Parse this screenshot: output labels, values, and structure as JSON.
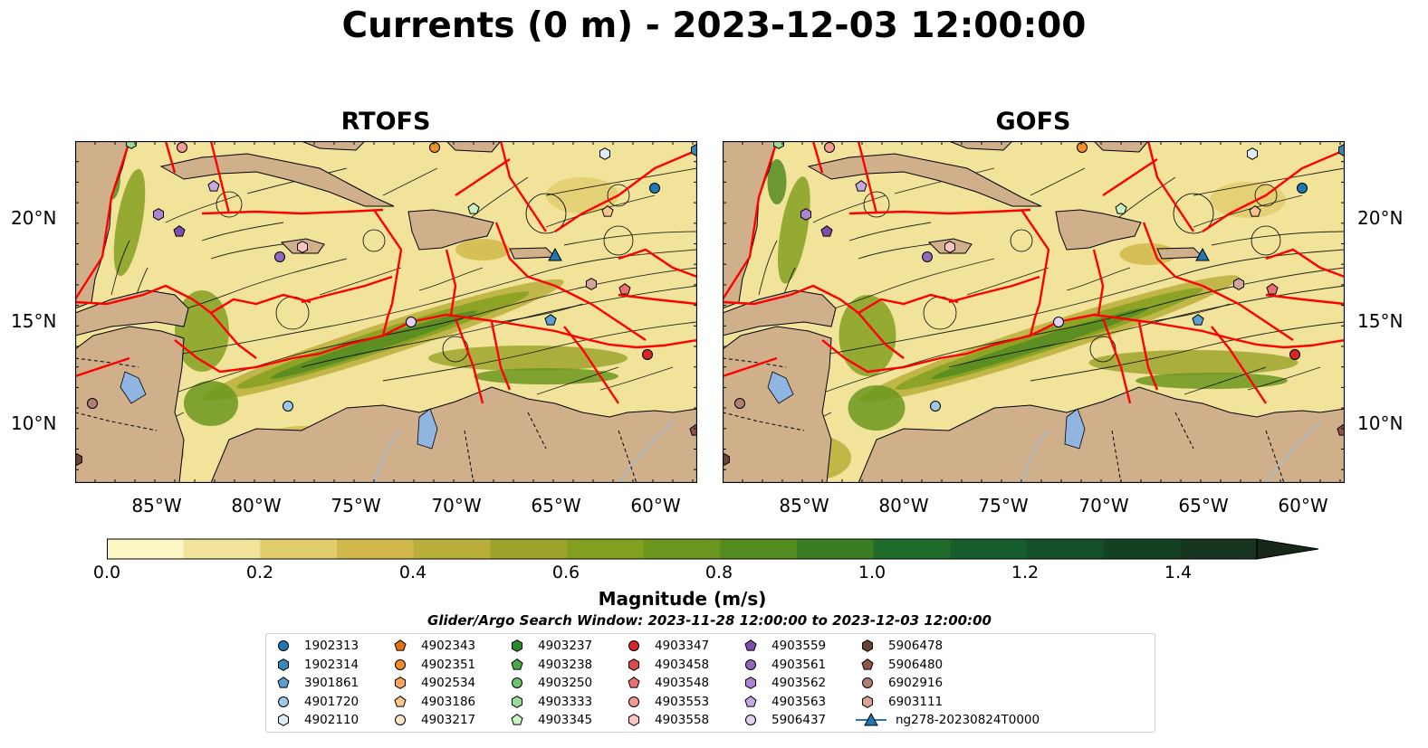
{
  "title": "Currents (0 m) - 2023-12-03 12:00:00",
  "panels": [
    {
      "name": "RTOFS"
    },
    {
      "name": "GOFS"
    }
  ],
  "lat_ticks": [
    "20°N",
    "15°N",
    "10°N"
  ],
  "lon_ticks": [
    "85°W",
    "80°W",
    "75°W",
    "70°W",
    "65°W",
    "60°W"
  ],
  "colorbar": {
    "label": "Magnitude (m/s)",
    "ticks": [
      "0.0",
      "0.2",
      "0.4",
      "0.6",
      "0.8",
      "1.0",
      "1.2",
      "1.4"
    ],
    "colors": [
      "#fdf7c6",
      "#f1e49a",
      "#e2cd6e",
      "#d2b84c",
      "#b9ae3a",
      "#9ea42b",
      "#84a020",
      "#6b971f",
      "#538b21",
      "#3a7d24",
      "#1f6b2b",
      "#165e2d",
      "#145029",
      "#154123",
      "#16341f",
      "#17281a"
    ]
  },
  "search_window": "Glider/Argo Search Window: 2023-11-28 12:00:00 to 2023-12-03 12:00:00",
  "legend": [
    {
      "label": "1902313",
      "shape": "circle",
      "color": "#1f77b4"
    },
    {
      "label": "1902314",
      "shape": "hexagon",
      "color": "#3a86b8"
    },
    {
      "label": "3901861",
      "shape": "pentagon",
      "color": "#5a9fd4"
    },
    {
      "label": "4901720",
      "shape": "circle",
      "color": "#9cc8e8"
    },
    {
      "label": "4902110",
      "shape": "hexagon",
      "color": "#dcedf8"
    },
    {
      "label": "4902343",
      "shape": "pentagon",
      "color": "#e6700f"
    },
    {
      "label": "4902351",
      "shape": "circle",
      "color": "#f28e2b"
    },
    {
      "label": "4902534",
      "shape": "hexagon",
      "color": "#f7a55a"
    },
    {
      "label": "4903186",
      "shape": "pentagon",
      "color": "#fbc58e"
    },
    {
      "label": "4903217",
      "shape": "circle",
      "color": "#fde3c6"
    },
    {
      "label": "4903237",
      "shape": "hexagon",
      "color": "#2c8a2c"
    },
    {
      "label": "4903238",
      "shape": "pentagon",
      "color": "#4aa84a"
    },
    {
      "label": "4903250",
      "shape": "circle",
      "color": "#6cc36c"
    },
    {
      "label": "4903333",
      "shape": "hexagon",
      "color": "#98dc98"
    },
    {
      "label": "4903345",
      "shape": "pentagon",
      "color": "#c9f3c3"
    },
    {
      "label": "4903347",
      "shape": "circle",
      "color": "#d62728"
    },
    {
      "label": "4903458",
      "shape": "hexagon",
      "color": "#e04a4a"
    },
    {
      "label": "4903548",
      "shape": "pentagon",
      "color": "#ec7070"
    },
    {
      "label": "4903553",
      "shape": "circle",
      "color": "#f29a96"
    },
    {
      "label": "4903558",
      "shape": "hexagon",
      "color": "#fac4c0"
    },
    {
      "label": "4903559",
      "shape": "pentagon",
      "color": "#7e4ea8"
    },
    {
      "label": "4903561",
      "shape": "circle",
      "color": "#9467bd"
    },
    {
      "label": "4903562",
      "shape": "hexagon",
      "color": "#ab86d0"
    },
    {
      "label": "4903563",
      "shape": "pentagon",
      "color": "#c5a9e2"
    },
    {
      "label": "5906437",
      "shape": "circle",
      "color": "#e3d0f3"
    },
    {
      "label": "5906478",
      "shape": "hexagon",
      "color": "#6b4332"
    },
    {
      "label": "5906480",
      "shape": "pentagon",
      "color": "#8c564b"
    },
    {
      "label": "6902916",
      "shape": "circle",
      "color": "#b07f72"
    },
    {
      "label": "6903111",
      "shape": "hexagon",
      "color": "#d4a596"
    },
    {
      "label": "ng278-20230824T0000",
      "shape": "triangle",
      "color": "#1f77b4"
    }
  ],
  "colors": {
    "land": "#cfb08a",
    "lake": "#8fb5e0",
    "eez": "#ff0000"
  }
}
